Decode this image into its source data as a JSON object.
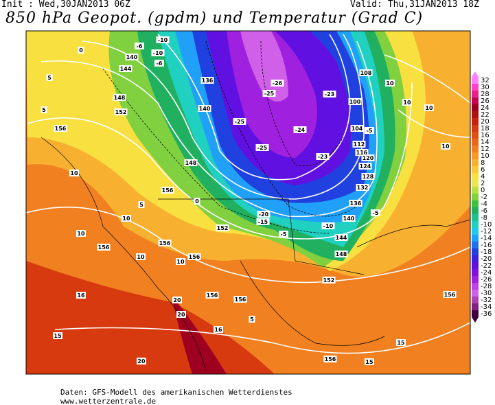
{
  "header": {
    "init": "Init : Wed,30JAN2013 06Z",
    "valid": "Valid: Thu,31JAN2013 18Z",
    "title": "850 hPa Geopot. (gpdm) und Temperatur (Grad C)"
  },
  "colorbar": {
    "levels": [
      32,
      30,
      28,
      26,
      24,
      22,
      20,
      18,
      16,
      14,
      12,
      10,
      8,
      6,
      4,
      2,
      0,
      -2,
      -4,
      -6,
      -8,
      -10,
      -12,
      -14,
      -16,
      -18,
      -20,
      -22,
      -24,
      -26,
      -28,
      -30,
      -32,
      -34,
      -36
    ],
    "colors": [
      "#ff80ff",
      "#ff40c8",
      "#e8208a",
      "#c80050",
      "#a00020",
      "#b01010",
      "#c82010",
      "#d83a10",
      "#e05010",
      "#e86818",
      "#f08020",
      "#f89828",
      "#f8b030",
      "#f8c838",
      "#f8e040",
      "#e8e850",
      "#b8e040",
      "#80d040",
      "#40c040",
      "#20b060",
      "#20c090",
      "#20d0c0",
      "#20c8f0",
      "#20a0f8",
      "#2070f0",
      "#2040e0",
      "#4020e0",
      "#6010e0",
      "#8010e0",
      "#a020e0",
      "#c040e8",
      "#d060e8",
      "#b040b0",
      "#802080",
      "#400040"
    ]
  },
  "contour_labels": [
    0,
    -6,
    -10,
    -10,
    -6,
    140,
    144,
    148,
    152,
    156,
    5,
    5,
    10,
    136,
    140,
    -26,
    -25,
    -23,
    -25,
    -25,
    -24,
    -23,
    108,
    100,
    104,
    -5,
    112,
    116,
    120,
    124,
    128,
    132,
    136,
    140,
    -5,
    144,
    148,
    152,
    156,
    -20,
    -15,
    -10,
    -5,
    152,
    156,
    148,
    0,
    5,
    10,
    156,
    156,
    10,
    156,
    10,
    10,
    16,
    20,
    20,
    16,
    156,
    156,
    5,
    15,
    20,
    156,
    15,
    15,
    10,
    10,
    10,
    10
  ],
  "footer": {
    "source": "Daten: GFS-Modell des amerikanischen Wetterdienstes",
    "url": "www.wetterzentrale.de"
  }
}
